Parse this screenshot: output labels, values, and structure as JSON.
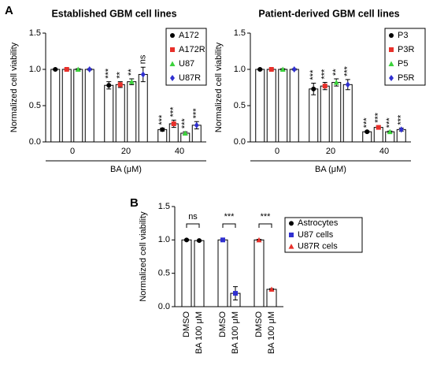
{
  "panels": [
    "A",
    "B"
  ],
  "chart_data": [
    {
      "type": "grouped_bar",
      "title": "Established GBM cell lines",
      "ylabel": "Normalized cell viability",
      "xlabel": "BA (μM)",
      "categories": [
        "0",
        "20",
        "40"
      ],
      "ylim": [
        0,
        1.5
      ],
      "yticks": [
        {
          "value": 0,
          "label": "0.0"
        },
        {
          "value": 0.5,
          "label": "0.5"
        },
        {
          "value": 1,
          "label": "1.0"
        },
        {
          "value": 1.5,
          "label": "1.5"
        }
      ],
      "series": [
        {
          "name": "A172",
          "color": "#000000",
          "marker": "circle",
          "values": [
            1.0,
            0.78,
            0.17
          ],
          "errors": [
            0.01,
            0.05,
            0.02
          ],
          "sig_labels": [
            null,
            "***",
            "***"
          ]
        },
        {
          "name": "A172R",
          "color": "#e8302a",
          "marker": "square",
          "values": [
            1.0,
            0.79,
            0.25
          ],
          "errors": [
            0.01,
            0.04,
            0.05
          ],
          "sig_labels": [
            null,
            "**",
            "***"
          ]
        },
        {
          "name": "U87",
          "color": "#3cd23c",
          "marker": "triangle",
          "values": [
            1.0,
            0.83,
            0.12
          ],
          "errors": [
            0.01,
            0.04,
            0.02
          ],
          "sig_labels": [
            null,
            "**",
            "***"
          ]
        },
        {
          "name": "U87R",
          "color": "#3030d0",
          "marker": "diamond",
          "values": [
            1.0,
            0.93,
            0.23
          ],
          "errors": [
            0.01,
            0.1,
            0.05
          ],
          "sig_labels": [
            null,
            "ns",
            "***"
          ]
        }
      ]
    },
    {
      "type": "grouped_bar",
      "title": "Patient-derived GBM cell lines",
      "ylabel": "Normalized cell viability",
      "xlabel": "BA (μM)",
      "categories": [
        "0",
        "20",
        "40"
      ],
      "ylim": [
        0,
        1.5
      ],
      "yticks": [
        {
          "value": 0,
          "label": "0.0"
        },
        {
          "value": 0.5,
          "label": "0.5"
        },
        {
          "value": 1,
          "label": "1.0"
        },
        {
          "value": 1.5,
          "label": "1.5"
        }
      ],
      "series": [
        {
          "name": "P3",
          "color": "#000000",
          "marker": "circle",
          "values": [
            1.0,
            0.73,
            0.14
          ],
          "errors": [
            0.01,
            0.08,
            0.01
          ],
          "sig_labels": [
            null,
            "***",
            "***"
          ]
        },
        {
          "name": "P3R",
          "color": "#e8302a",
          "marker": "square",
          "values": [
            1.0,
            0.77,
            0.2
          ],
          "errors": [
            0.01,
            0.05,
            0.02
          ],
          "sig_labels": [
            null,
            "***",
            "***"
          ]
        },
        {
          "name": "P5",
          "color": "#3cd23c",
          "marker": "triangle",
          "values": [
            1.0,
            0.82,
            0.14
          ],
          "errors": [
            0.01,
            0.05,
            0.01
          ],
          "sig_labels": [
            null,
            "**",
            "***"
          ]
        },
        {
          "name": "P5R",
          "color": "#3030d0",
          "marker": "diamond",
          "values": [
            1.0,
            0.79,
            0.17
          ],
          "errors": [
            0.01,
            0.07,
            0.02
          ],
          "sig_labels": [
            null,
            "***",
            "***"
          ]
        }
      ]
    },
    {
      "type": "paired_bar",
      "ylabel": "Normalized cell viability",
      "categories": [
        "DMSO",
        "BA 100 μM"
      ],
      "ylim": [
        0,
        1.5
      ],
      "yticks": [
        {
          "value": 0,
          "label": "0.0"
        },
        {
          "value": 0.5,
          "label": "0.5"
        },
        {
          "value": 1,
          "label": "1.0"
        },
        {
          "value": 1.5,
          "label": "1.5"
        }
      ],
      "series": [
        {
          "name": "Astrocytes",
          "color": "#000000",
          "marker": "circle",
          "values": [
            1.0,
            0.99
          ],
          "errors": [
            0.01,
            0.01
          ],
          "sig_label": "ns"
        },
        {
          "name": "U87 cells",
          "color": "#3030d0",
          "marker": "square",
          "values": [
            1.0,
            0.2
          ],
          "errors": [
            0.01,
            0.1
          ],
          "sig_label": "***"
        },
        {
          "name": "U87R cels",
          "color": "#e8302a",
          "marker": "triangle",
          "values": [
            1.0,
            0.26
          ],
          "errors": [
            0.01,
            0.01
          ],
          "sig_label": "***"
        }
      ]
    }
  ]
}
